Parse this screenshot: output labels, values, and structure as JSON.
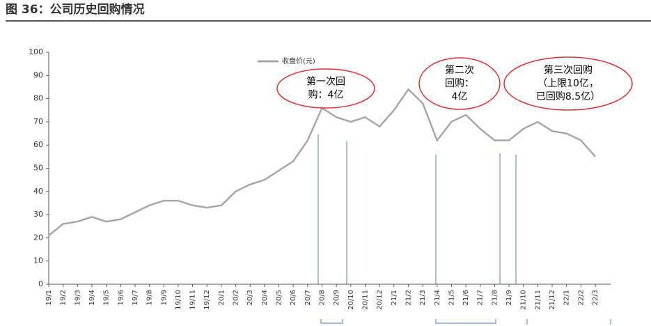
{
  "chart_data": {
    "type": "line",
    "title": "图 36：公司历史回购情况",
    "categories": [
      "19/1",
      "19/2",
      "19/3",
      "19/4",
      "19/5",
      "19/6",
      "19/7",
      "19/8",
      "19/9",
      "19/10",
      "19/11",
      "19/12",
      "20/1",
      "20/2",
      "20/3",
      "20/4",
      "20/5",
      "20/6",
      "20/7",
      "20/8",
      "20/9",
      "20/10",
      "20/11",
      "20/12",
      "21/1",
      "21/2",
      "21/3",
      "21/4",
      "21/5",
      "21/6",
      "21/7",
      "21/8",
      "21/9",
      "21/10",
      "21/11",
      "21/12",
      "22/1",
      "22/2",
      "22/3"
    ],
    "series": [
      {
        "name": "收盘价(元)",
        "color": "#a6a6a6",
        "values": [
          21,
          26,
          27,
          29,
          27,
          28,
          31,
          34,
          36,
          36,
          34,
          33,
          34,
          40,
          43,
          45,
          49,
          53,
          62,
          76,
          72,
          70,
          72,
          68,
          75,
          84,
          78,
          62,
          70,
          73,
          67,
          62,
          62,
          67,
          70,
          66,
          65,
          62,
          55
        ]
      }
    ],
    "ylim": [
      0,
      100
    ],
    "yticks": [
      0,
      10,
      20,
      30,
      40,
      50,
      60,
      70,
      80,
      90,
      100
    ],
    "annotations": [
      {
        "lines": [
          "第一次回",
          "购：4亿"
        ]
      },
      {
        "lines": [
          "第二次",
          "回购：",
          "4亿"
        ]
      },
      {
        "lines": [
          "第三次回购",
          "（上限10亿，",
          "已回购8.5亿）"
        ]
      }
    ]
  }
}
